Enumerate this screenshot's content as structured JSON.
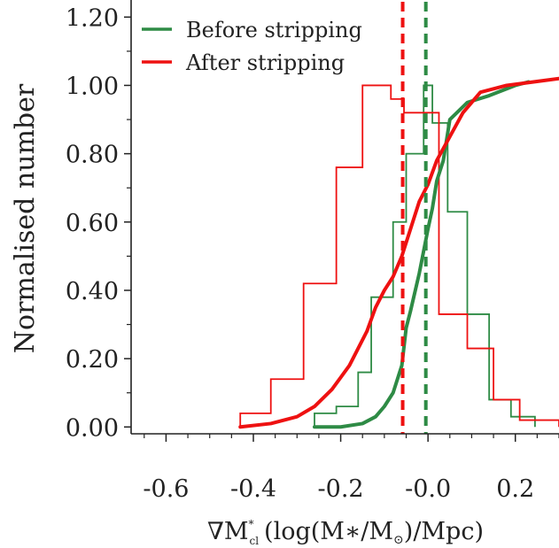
{
  "chart_data": {
    "type": "line",
    "ylabel": "Normalised number",
    "xlabel_parts": {
      "nabla": "∇M",
      "sup": "*",
      "sub": "cl",
      "rest": "(log(M",
      "star": "∗",
      "slash": "/M",
      "sun": "⊙",
      "end": ")/Mpc)"
    },
    "xlim": [
      -0.68,
      0.3
    ],
    "ylim": [
      -0.02,
      1.25
    ],
    "xticks": [
      -0.6,
      -0.4,
      -0.2,
      0.0,
      0.2
    ],
    "xtick_labels": [
      "-0.6",
      "-0.4",
      "-0.2",
      "-0.0",
      "0.2"
    ],
    "yticks": [
      0.0,
      0.2,
      0.4,
      0.6,
      0.8,
      1.0,
      1.2
    ],
    "ytick_labels": [
      "0.00",
      "0.20",
      "0.40",
      "0.60",
      "0.80",
      "1.00",
      "1.20"
    ],
    "legend_position": "top-left",
    "grid": false,
    "series": [
      {
        "name": "Before stripping",
        "color": "#2e8b45",
        "histogram": {
          "edges": [
            -0.26,
            -0.21,
            -0.16,
            -0.13,
            -0.08,
            -0.05,
            -0.01,
            0.01,
            0.045,
            0.09,
            0.14,
            0.19,
            0.245
          ],
          "heights": [
            0.04,
            0.06,
            0.16,
            0.38,
            0.6,
            0.8,
            1.0,
            0.89,
            0.63,
            0.33,
            0.08,
            0.03
          ]
        },
        "cdf": {
          "x": [
            -0.26,
            -0.2,
            -0.15,
            -0.12,
            -0.1,
            -0.08,
            -0.06,
            -0.05,
            -0.04,
            -0.02,
            0.0,
            0.01,
            0.02,
            0.035,
            0.05,
            0.09,
            0.14,
            0.2,
            0.23
          ],
          "y": [
            0.0,
            0.0,
            0.01,
            0.03,
            0.06,
            0.1,
            0.18,
            0.29,
            0.34,
            0.45,
            0.58,
            0.64,
            0.72,
            0.78,
            0.9,
            0.95,
            0.97,
            1.0,
            1.01
          ]
        },
        "median": -0.005
      },
      {
        "name": "After stripping",
        "color": "#ee1111",
        "histogram": {
          "edges": [
            -0.43,
            -0.36,
            -0.285,
            -0.21,
            -0.15,
            -0.085,
            -0.055,
            0.025,
            0.09,
            0.15,
            0.21,
            0.3
          ],
          "heights": [
            0.04,
            0.14,
            0.42,
            0.76,
            1.0,
            0.96,
            0.92,
            0.33,
            0.23,
            0.08,
            0.02
          ]
        },
        "cdf": {
          "x": [
            -0.43,
            -0.36,
            -0.3,
            -0.26,
            -0.22,
            -0.18,
            -0.14,
            -0.12,
            -0.1,
            -0.08,
            -0.06,
            -0.04,
            -0.02,
            0.0,
            0.02,
            0.05,
            0.08,
            0.12,
            0.18,
            0.24,
            0.3
          ],
          "y": [
            0.0,
            0.01,
            0.03,
            0.06,
            0.11,
            0.18,
            0.28,
            0.35,
            0.4,
            0.44,
            0.5,
            0.58,
            0.66,
            0.71,
            0.78,
            0.85,
            0.92,
            0.98,
            1.0,
            1.01,
            1.02
          ]
        },
        "median": -0.058
      }
    ]
  }
}
